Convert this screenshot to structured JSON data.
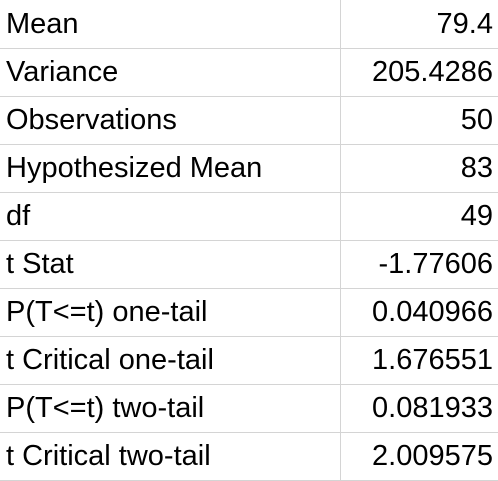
{
  "rows": [
    {
      "label": "Mean",
      "value": "79.4"
    },
    {
      "label": "Variance",
      "value": "205.4286"
    },
    {
      "label": "Observations",
      "value": "50"
    },
    {
      "label": "Hypothesized Mean",
      "value": "83"
    },
    {
      "label": "df",
      "value": "49"
    },
    {
      "label": "t Stat",
      "value": "-1.77606"
    },
    {
      "label": "P(T<=t) one-tail",
      "value": "0.040966"
    },
    {
      "label": "t Critical one-tail",
      "value": "1.676551"
    },
    {
      "label": "P(T<=t) two-tail",
      "value": "0.081933"
    },
    {
      "label": "t Critical two-tail",
      "value": "2.009575"
    }
  ],
  "colors": {
    "gridline": "#d4d4d4",
    "text": "#000000",
    "background": "#ffffff"
  }
}
